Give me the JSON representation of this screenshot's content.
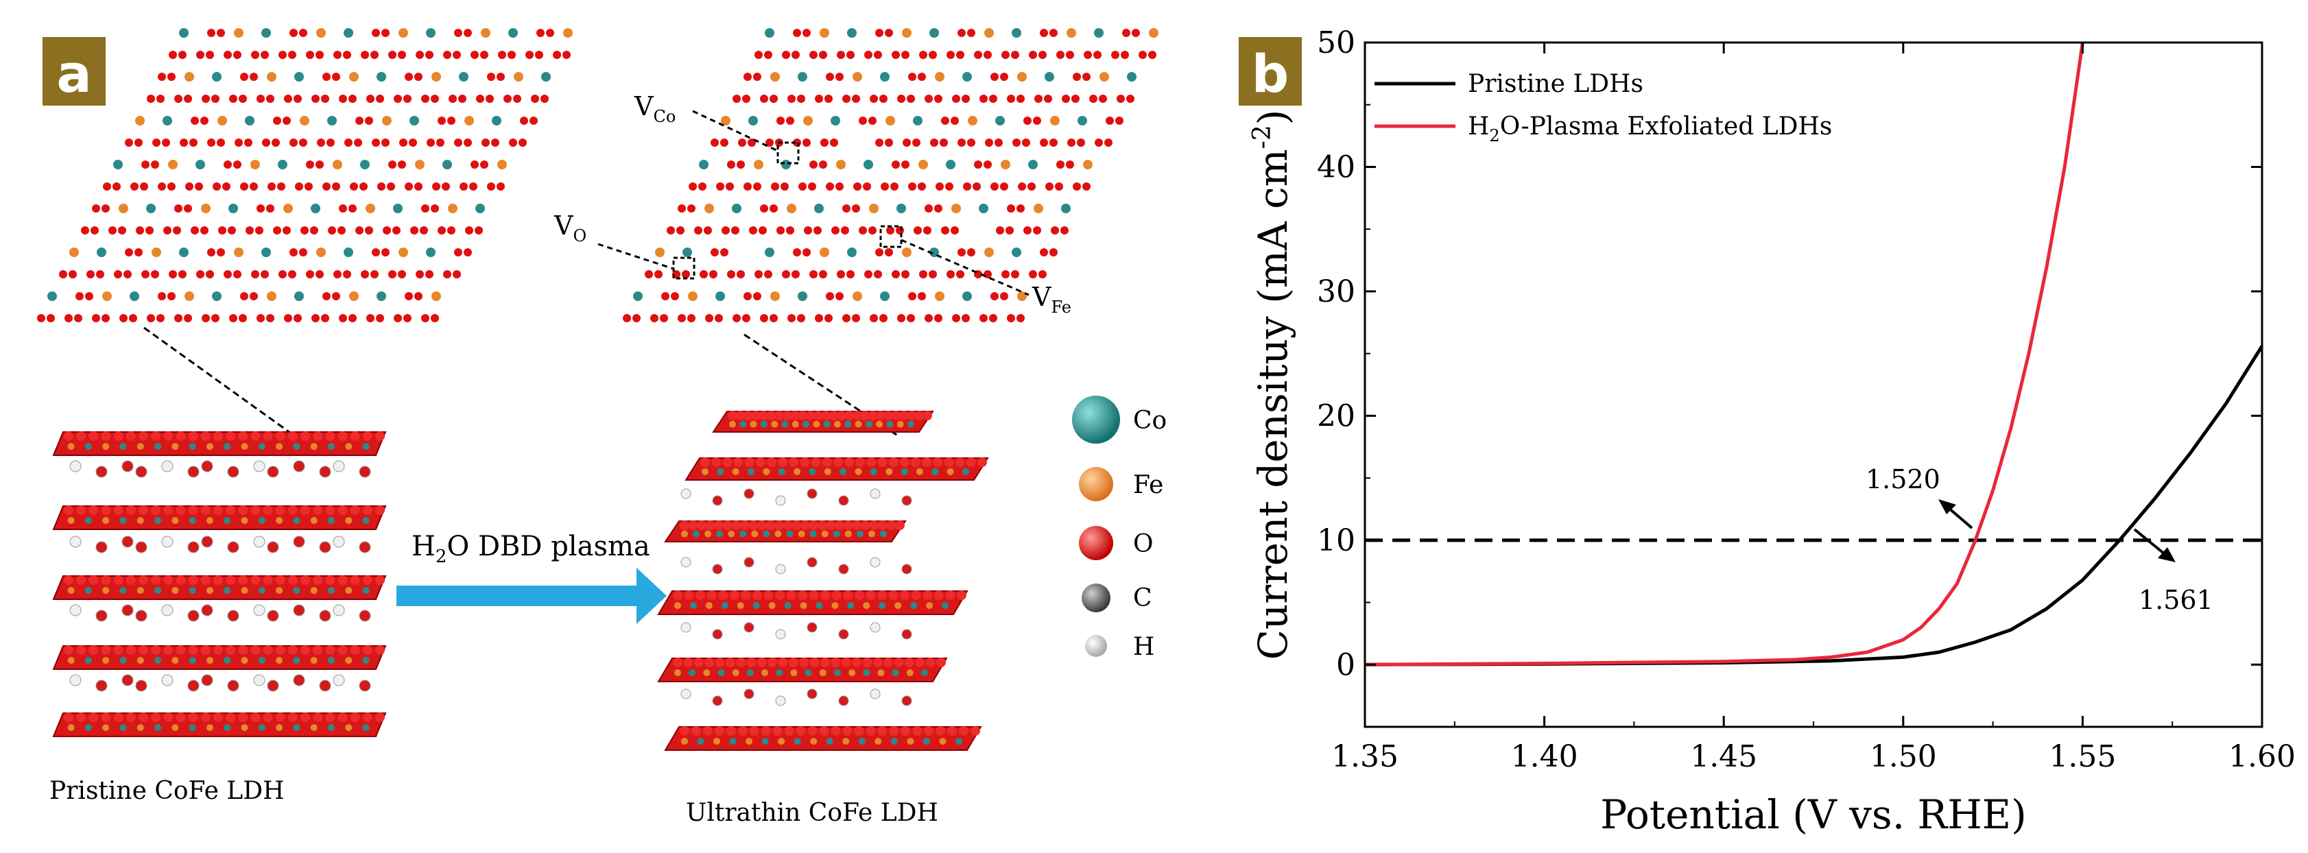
{
  "panel_a": {
    "label": "a",
    "vacancy_co_base": "V",
    "vacancy_co_sub": "Co",
    "vacancy_o_base": "V",
    "vacancy_o_sub": "O",
    "vacancy_fe_base": "V",
    "vacancy_fe_sub": "Fe",
    "arrow_label_h": "H",
    "arrow_label_sub": "2",
    "arrow_label_rest": "O DBD plasma",
    "caption_pristine": "Pristine CoFe LDH",
    "caption_ultrathin": "Ultrathin CoFe LDH",
    "legend": [
      {
        "symbol": "Co",
        "color": "#2a8a8a"
      },
      {
        "symbol": "Fe",
        "color": "#e8862c"
      },
      {
        "symbol": "O",
        "color": "#e01010"
      },
      {
        "symbol": "C",
        "color": "#555555"
      },
      {
        "symbol": "H",
        "color": "#e6e6e6"
      }
    ]
  },
  "chart_data": {
    "type": "line",
    "panel_label": "b",
    "xlabel": "Potential (V vs. RHE)",
    "ylabel_main": "Current densituy (mA cm",
    "ylabel_sup": "-2",
    "ylabel_close": ")",
    "xlim": [
      1.35,
      1.6
    ],
    "ylim": [
      -5,
      50
    ],
    "xticks": [
      "1.35",
      "1.40",
      "1.45",
      "1.50",
      "1.55",
      "1.60"
    ],
    "yticks": [
      "0",
      "10",
      "20",
      "30",
      "40",
      "50"
    ],
    "xtick_values": [
      1.35,
      1.4,
      1.45,
      1.5,
      1.55,
      1.6
    ],
    "ytick_values": [
      0,
      10,
      20,
      30,
      40,
      50
    ],
    "hline": 10,
    "series": [
      {
        "name": "Pristine LDHs",
        "color": "#000000",
        "x": [
          1.35,
          1.4,
          1.45,
          1.48,
          1.5,
          1.51,
          1.52,
          1.53,
          1.54,
          1.55,
          1.56,
          1.57,
          1.58,
          1.59,
          1.6
        ],
        "y": [
          0.0,
          0.05,
          0.15,
          0.3,
          0.6,
          1.0,
          1.8,
          2.8,
          4.5,
          6.8,
          9.9,
          13.3,
          17.0,
          21.0,
          25.6
        ]
      },
      {
        "name_prefix": "H",
        "name_sub": "2",
        "name_rest": "O-Plasma Exfoliated LDHs",
        "color": "#e8283a",
        "x": [
          1.35,
          1.4,
          1.45,
          1.47,
          1.48,
          1.49,
          1.5,
          1.505,
          1.51,
          1.515,
          1.52,
          1.525,
          1.53,
          1.535,
          1.54,
          1.545,
          1.55
        ],
        "y": [
          0.0,
          0.1,
          0.25,
          0.4,
          0.6,
          1.0,
          2.0,
          3.0,
          4.5,
          6.5,
          9.9,
          14.0,
          19.0,
          25.0,
          32.0,
          40.0,
          50.0
        ]
      }
    ],
    "annotations": [
      {
        "text": "1.520",
        "x": 1.52,
        "y": 10
      },
      {
        "text": "1.561",
        "x": 1.561,
        "y": 10
      }
    ]
  }
}
